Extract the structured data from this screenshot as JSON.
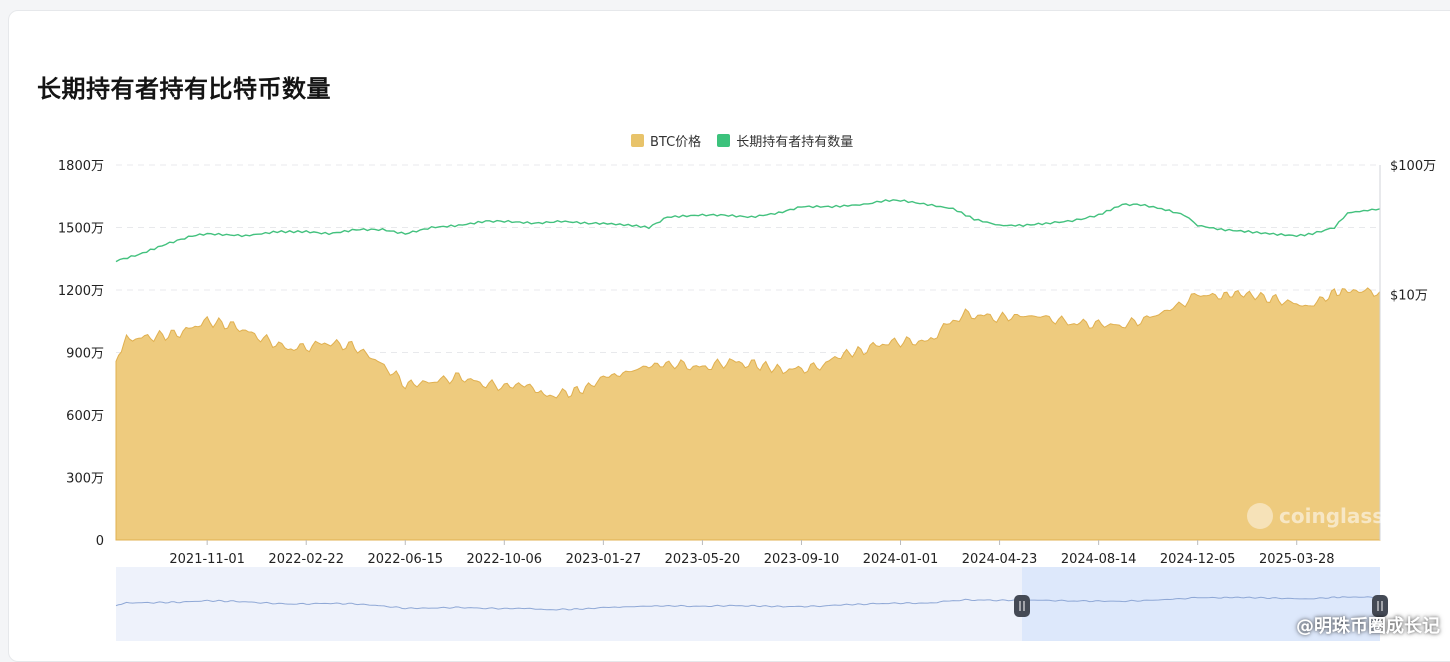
{
  "page": {
    "title": "长期持有者持有比特币数量"
  },
  "legend": [
    {
      "label": "BTC价格",
      "color": "#e8c36a"
    },
    {
      "label": "长期持有者持有数量",
      "color": "#3cc27c"
    }
  ],
  "watermark": {
    "logo_text": "coinglass",
    "share_text": "@明珠币圈成长记"
  },
  "colors": {
    "price_fill": "#eecb7e",
    "price_stroke": "#e0b050",
    "holder_line": "#43c17e",
    "navigator_fill": "#dde8fb",
    "navigator_line": "#8fa8d6",
    "handle": "#444a55"
  },
  "chart_data": {
    "type": "area",
    "x_ticks": [
      "2021-11-01",
      "2022-02-22",
      "2022-06-15",
      "2022-10-06",
      "2023-01-27",
      "2023-05-20",
      "2023-09-10",
      "2024-01-01",
      "2024-04-23",
      "2024-08-14",
      "2024-12-05",
      "2025-03-28"
    ],
    "y_left_ticks": [
      "0",
      "300万",
      "600万",
      "900万",
      "1200万",
      "1500万",
      "1800万"
    ],
    "y_left_range": [
      0,
      18000000
    ],
    "y_right_ticks": [
      "$10万",
      "$100万"
    ],
    "y_right_scale": "log",
    "grid": "horizontal dashed",
    "legend_position": "top-center",
    "series": [
      {
        "name": "BTC价格",
        "type": "area",
        "axis": "right",
        "x": [
          "2021-07-20",
          "2021-08-01",
          "2021-09-01",
          "2021-10-01",
          "2021-11-01",
          "2021-12-01",
          "2022-01-01",
          "2022-02-01",
          "2022-02-22",
          "2022-03-15",
          "2022-04-15",
          "2022-05-15",
          "2022-06-15",
          "2022-07-15",
          "2022-08-15",
          "2022-09-15",
          "2022-10-06",
          "2022-11-01",
          "2022-11-20",
          "2022-12-15",
          "2023-01-10",
          "2023-01-27",
          "2023-02-15",
          "2023-03-20",
          "2023-04-15",
          "2023-05-20",
          "2023-06-20",
          "2023-07-15",
          "2023-08-20",
          "2023-09-10",
          "2023-10-01",
          "2023-10-25",
          "2023-11-20",
          "2023-12-15",
          "2024-01-01",
          "2024-02-01",
          "2024-03-01",
          "2024-03-15",
          "2024-04-23",
          "2024-05-20",
          "2024-06-15",
          "2024-07-10",
          "2024-08-14",
          "2024-09-10",
          "2024-10-15",
          "2024-11-10",
          "2024-12-05",
          "2025-01-01",
          "2025-01-20",
          "2025-02-15",
          "2025-03-28",
          "2025-04-10",
          "2025-05-10",
          "2025-05-22",
          "2025-06-10",
          "2025-07-01"
        ],
        "values": [
          30000,
          45000,
          47000,
          50000,
          62000,
          57000,
          46000,
          38000,
          39000,
          42000,
          40000,
          30000,
          20000,
          21000,
          23000,
          20000,
          19500,
          20000,
          16500,
          17000,
          19000,
          23000,
          24000,
          28000,
          29000,
          27000,
          30000,
          29000,
          26000,
          26500,
          27500,
          34000,
          37000,
          42000,
          43000,
          43000,
          62000,
          70000,
          66000,
          68000,
          67000,
          60000,
          59000,
          57000,
          67000,
          80000,
          99000,
          97000,
          102000,
          96000,
          84000,
          80000,
          102000,
          107000,
          105000,
          105000
        ]
      },
      {
        "name": "长期持有者持有数量",
        "type": "line",
        "axis": "left",
        "x": [
          "2021-07-20",
          "2021-08-15",
          "2021-09-15",
          "2021-10-15",
          "2021-11-01",
          "2021-12-15",
          "2022-01-20",
          "2022-02-22",
          "2022-03-20",
          "2022-04-20",
          "2022-05-20",
          "2022-06-15",
          "2022-07-15",
          "2022-08-15",
          "2022-09-15",
          "2022-10-06",
          "2022-11-10",
          "2022-12-10",
          "2023-01-10",
          "2023-01-27",
          "2023-03-01",
          "2023-03-20",
          "2023-04-10",
          "2023-05-20",
          "2023-06-10",
          "2023-07-15",
          "2023-08-15",
          "2023-09-10",
          "2023-10-15",
          "2023-11-20",
          "2023-12-15",
          "2024-01-01",
          "2024-02-01",
          "2024-03-01",
          "2024-03-25",
          "2024-04-23",
          "2024-05-20",
          "2024-06-15",
          "2024-07-10",
          "2024-07-25",
          "2024-08-14",
          "2024-09-10",
          "2024-10-01",
          "2024-10-25",
          "2024-11-20",
          "2024-12-05",
          "2025-01-01",
          "2025-02-01",
          "2025-02-25",
          "2025-03-28",
          "2025-04-15",
          "2025-05-10",
          "2025-05-25",
          "2025-07-01"
        ],
        "values": [
          13400000,
          13700000,
          14200000,
          14600000,
          14700000,
          14600000,
          14800000,
          14800000,
          14700000,
          14900000,
          14900000,
          14700000,
          15000000,
          15100000,
          15300000,
          15300000,
          15200000,
          15300000,
          15200000,
          15200000,
          15100000,
          15000000,
          15500000,
          15600000,
          15600000,
          15500000,
          15700000,
          16000000,
          16000000,
          16100000,
          16300000,
          16300000,
          16100000,
          15900000,
          15400000,
          15100000,
          15100000,
          15200000,
          15300000,
          15400000,
          15600000,
          16100000,
          16100000,
          15900000,
          15600000,
          15100000,
          14900000,
          14800000,
          14700000,
          14600000,
          14700000,
          15000000,
          15700000,
          15900000
        ]
      }
    ]
  }
}
